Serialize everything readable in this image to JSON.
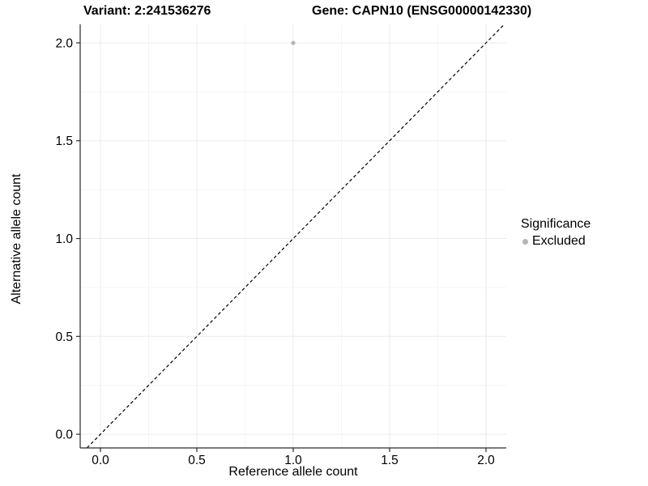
{
  "chart_data": {
    "type": "scatter",
    "title_left": "Variant: 2:241536276",
    "title_right": "Gene: CAPN10 (ENSG00000142330)",
    "xlabel": "Reference allele count",
    "ylabel": "Alternative allele count",
    "xlim": [
      -0.105,
      2.105
    ],
    "ylim": [
      -0.07,
      2.095
    ],
    "x_ticks": [
      0.0,
      0.5,
      1.0,
      1.5,
      2.0
    ],
    "y_ticks": [
      0.0,
      0.5,
      1.0,
      1.5,
      2.0
    ],
    "x_minor_ticks": [
      0.25,
      0.75,
      1.25,
      1.75
    ],
    "y_minor_ticks": [
      0.25,
      0.75,
      1.25,
      1.75
    ],
    "tick_format_decimals": 1,
    "grid": true,
    "points": [
      {
        "x": 1.0,
        "y": 2.0,
        "series": "Excluded"
      }
    ],
    "reference_line": {
      "type": "identity",
      "style": "dashed",
      "from": -0.07,
      "to": 2.095
    },
    "legend": {
      "title": "Significance",
      "position": "right",
      "entries": [
        {
          "label": "Excluded",
          "color": "#b5b5b5"
        }
      ]
    },
    "colors": {
      "background": "#ffffff",
      "point_excluded": "#b5b5b5",
      "axis_line": "#2b2b2b",
      "grid_major": "#ebebeb",
      "grid_minor": "#f5f5f5",
      "text": "#000000",
      "reference_line": "#000000"
    }
  }
}
